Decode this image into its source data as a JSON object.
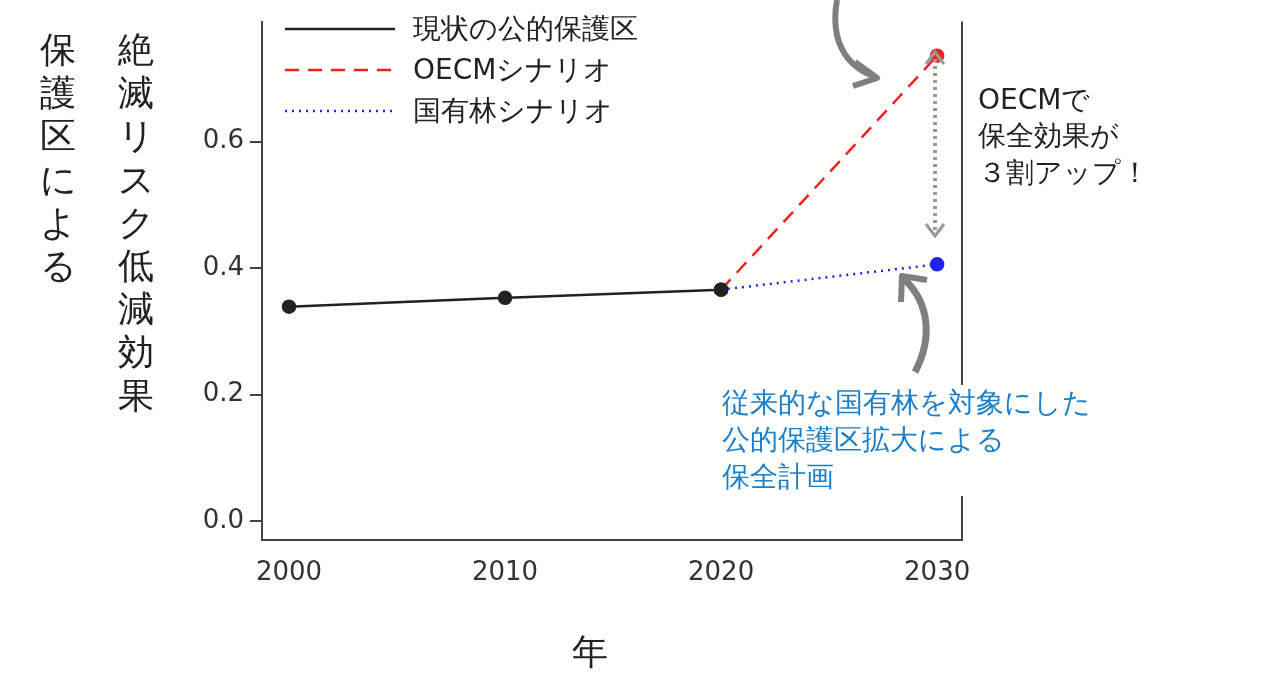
{
  "chart_data": {
    "type": "line",
    "xlabel": "年",
    "ylabel": "保護区による絶滅リスク低減効果",
    "xlim": [
      1998.75,
      2031.15
    ],
    "xticks": [
      2000,
      2010,
      2020,
      2030
    ],
    "ylim": [
      -0.03,
      0.79
    ],
    "yticks": [
      {
        "value": 0,
        "label": "0.0"
      },
      {
        "value": 0.2,
        "label": "0.2"
      },
      {
        "value": 0.4,
        "label": "0.4"
      },
      {
        "value": 0.6,
        "label": "0.6"
      }
    ],
    "marker": "circle",
    "legend": "top left",
    "grid": false,
    "series": [
      {
        "name": "現状の公的保護区",
        "color": "#222222",
        "line_style": "solid",
        "x": [
          2000,
          2010,
          2020
        ],
        "values": [
          0.339,
          0.353,
          0.366
        ]
      },
      {
        "name": "OECMシナリオ",
        "color": "#ee2222",
        "line_style": "dashed",
        "x": [
          2020,
          2030
        ],
        "values": [
          0.366,
          0.736
        ]
      },
      {
        "name": "国有林シナリオ",
        "color": "#2222ee",
        "line_style": "dotted",
        "x": [
          2020,
          2030
        ],
        "values": [
          0.366,
          0.406
        ]
      }
    ],
    "annotations": [
      "OECMで保全効果が３割アップ！",
      "従来的な国有林を対象にした公的保護区拡大による保全計画"
    ]
  }
}
